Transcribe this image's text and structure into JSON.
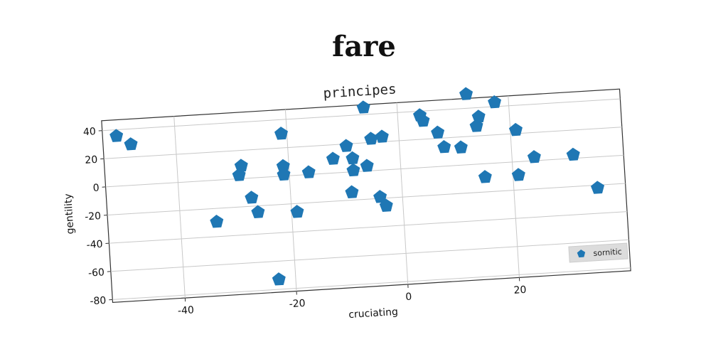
{
  "figure_title": "fare",
  "chart_data": {
    "type": "scatter",
    "title": "principes",
    "xlabel": "cruciating",
    "ylabel": "gentility",
    "xlim": [
      -53,
      40
    ],
    "ylim": [
      -82,
      47
    ],
    "xticks": [
      -40,
      -20,
      0,
      20
    ],
    "yticks": [
      40,
      20,
      0,
      -20,
      -40,
      -60,
      -80
    ],
    "grid": true,
    "legend_position": "bottom-right",
    "marker": "pentagon",
    "series": [
      {
        "name": "sornitic",
        "color": "#1f77b4",
        "points": [
          {
            "x": -50.5,
            "y": 35.5
          },
          {
            "x": -48,
            "y": 29
          },
          {
            "x": -33.5,
            "y": -29.5
          },
          {
            "x": -29,
            "y": 2.5
          },
          {
            "x": -28.5,
            "y": 9
          },
          {
            "x": -27,
            "y": -14
          },
          {
            "x": -26,
            "y": -24.5
          },
          {
            "x": -23,
            "y": -73
          },
          {
            "x": -21,
            "y": 30
          },
          {
            "x": -21,
            "y": 7
          },
          {
            "x": -21,
            "y": 1
          },
          {
            "x": -19,
            "y": -26
          },
          {
            "x": -16.5,
            "y": 1.5
          },
          {
            "x": -12,
            "y": 10
          },
          {
            "x": -9.5,
            "y": 18.5
          },
          {
            "x": -9,
            "y": -14.5
          },
          {
            "x": -8.5,
            "y": 9.5
          },
          {
            "x": -8.5,
            "y": 1
          },
          {
            "x": -6,
            "y": 45
          },
          {
            "x": -6,
            "y": 3.5
          },
          {
            "x": -5,
            "y": 22.5
          },
          {
            "x": -4,
            "y": -19
          },
          {
            "x": -3,
            "y": 23.5
          },
          {
            "x": -3,
            "y": -25.5
          },
          {
            "x": 4,
            "y": 37
          },
          {
            "x": 4.5,
            "y": 33
          },
          {
            "x": 7,
            "y": 24
          },
          {
            "x": 8,
            "y": 13.5
          },
          {
            "x": 11,
            "y": 12.5
          },
          {
            "x": 12.5,
            "y": 50
          },
          {
            "x": 14,
            "y": 27
          },
          {
            "x": 14.5,
            "y": 33.5
          },
          {
            "x": 15,
            "y": -9.5
          },
          {
            "x": 17.5,
            "y": 43
          },
          {
            "x": 21,
            "y": 22.5
          },
          {
            "x": 21,
            "y": -9.5
          },
          {
            "x": 24,
            "y": 2.5
          },
          {
            "x": 31,
            "y": 2.5
          },
          {
            "x": 35,
            "y": -22
          }
        ]
      }
    ]
  }
}
